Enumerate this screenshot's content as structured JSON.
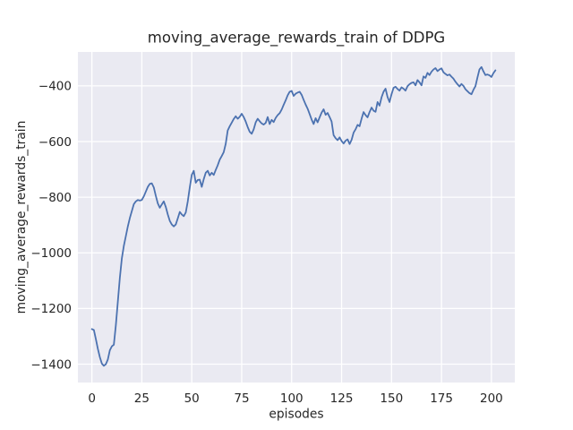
{
  "figure": {
    "title": "moving_average_rewards_train of DDPG",
    "xlabel": "episodes",
    "ylabel": "moving_average_rewards_train"
  },
  "chart_data": {
    "type": "line",
    "title": "moving_average_rewards_train of DDPG",
    "xlabel": "episodes",
    "ylabel": "moving_average_rewards_train",
    "legend": false,
    "grid": true,
    "plot_bg_color": "#eaeaf2",
    "grid_color": "#ffffff",
    "line_color": "#4c72b0",
    "text_color": "#262626",
    "xlim": [
      -7,
      211.7
    ],
    "ylim": [
      -1466,
      -278
    ],
    "x_ticks": [
      0,
      25,
      50,
      75,
      100,
      125,
      150,
      175,
      200
    ],
    "y_ticks": [
      -1400,
      -1200,
      -1000,
      -800,
      -600,
      -400
    ],
    "series": [
      {
        "name": "moving_average_rewards_train",
        "x_start": 0,
        "x_step": 1,
        "values": [
          -1274,
          -1277,
          -1310,
          -1345,
          -1375,
          -1398,
          -1406,
          -1400,
          -1383,
          -1350,
          -1336,
          -1330,
          -1260,
          -1175,
          -1090,
          -1020,
          -975,
          -940,
          -905,
          -875,
          -850,
          -825,
          -815,
          -810,
          -812,
          -810,
          -797,
          -780,
          -763,
          -752,
          -750,
          -765,
          -795,
          -822,
          -838,
          -826,
          -815,
          -835,
          -862,
          -885,
          -898,
          -905,
          -898,
          -876,
          -853,
          -862,
          -868,
          -855,
          -815,
          -765,
          -720,
          -705,
          -748,
          -738,
          -737,
          -763,
          -735,
          -712,
          -705,
          -722,
          -712,
          -720,
          -702,
          -685,
          -665,
          -652,
          -638,
          -608,
          -560,
          -545,
          -532,
          -519,
          -509,
          -518,
          -511,
          -500,
          -512,
          -528,
          -548,
          -565,
          -572,
          -556,
          -531,
          -518,
          -527,
          -535,
          -539,
          -533,
          -512,
          -537,
          -522,
          -530,
          -515,
          -505,
          -498,
          -485,
          -468,
          -452,
          -434,
          -421,
          -418,
          -436,
          -428,
          -424,
          -421,
          -432,
          -450,
          -467,
          -482,
          -501,
          -521,
          -537,
          -516,
          -531,
          -513,
          -496,
          -484,
          -504,
          -497,
          -512,
          -528,
          -577,
          -588,
          -595,
          -585,
          -598,
          -607,
          -597,
          -592,
          -609,
          -594,
          -568,
          -556,
          -540,
          -545,
          -518,
          -494,
          -505,
          -513,
          -494,
          -478,
          -489,
          -493,
          -458,
          -471,
          -441,
          -421,
          -410,
          -440,
          -458,
          -430,
          -407,
          -403,
          -411,
          -417,
          -405,
          -410,
          -417,
          -401,
          -394,
          -389,
          -387,
          -398,
          -379,
          -387,
          -398,
          -366,
          -371,
          -353,
          -361,
          -349,
          -341,
          -336,
          -347,
          -341,
          -337,
          -351,
          -357,
          -362,
          -359,
          -367,
          -374,
          -385,
          -394,
          -402,
          -393,
          -400,
          -412,
          -419,
          -426,
          -430,
          -414,
          -401,
          -370,
          -341,
          -332,
          -348,
          -361,
          -359,
          -362,
          -368,
          -354,
          -344
        ]
      }
    ]
  }
}
